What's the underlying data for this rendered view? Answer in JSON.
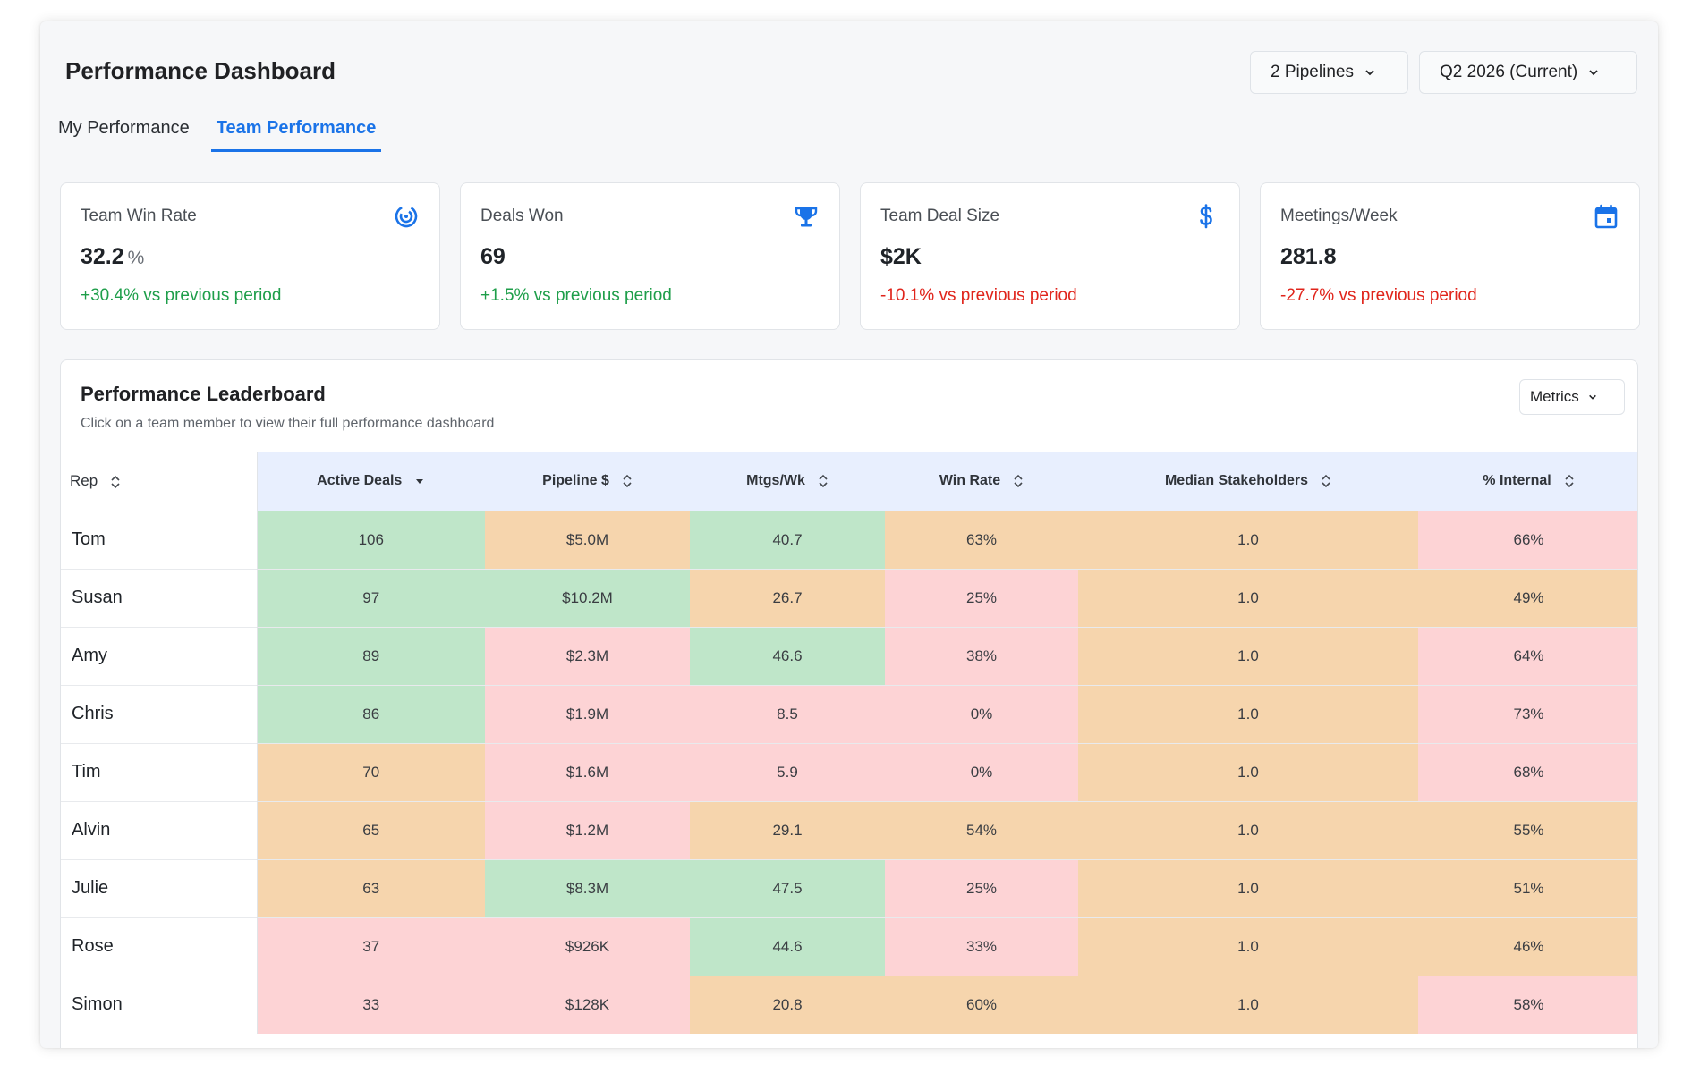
{
  "header": {
    "title": "Performance Dashboard",
    "pipelines_label": "2 Pipelines",
    "period_label": "Q2 2026 (Current)"
  },
  "tabs": [
    {
      "label": "My Performance",
      "active": false
    },
    {
      "label": "Team Performance",
      "active": true
    }
  ],
  "cards": [
    {
      "label": "Team Win Rate",
      "value": "32.2",
      "unit": "%",
      "delta": "+30.4% vs previous period",
      "trend": "up",
      "icon": "target-icon"
    },
    {
      "label": "Deals Won",
      "value": "69",
      "unit": "",
      "delta": "+1.5% vs previous period",
      "trend": "up",
      "icon": "trophy-icon"
    },
    {
      "label": "Team Deal Size",
      "value": "$2K",
      "unit": "",
      "delta": "-10.1% vs previous period",
      "trend": "down",
      "icon": "dollar-icon"
    },
    {
      "label": "Meetings/Week",
      "value": "281.8",
      "unit": "",
      "delta": "-27.7% vs previous period",
      "trend": "down",
      "icon": "calendar-icon"
    }
  ],
  "leaderboard": {
    "title": "Performance Leaderboard",
    "subtitle": "Click on a team member to view their full performance dashboard",
    "metrics_label": "Metrics",
    "columns": [
      "Rep",
      "Active Deals",
      "Pipeline $",
      "Mtgs/Wk",
      "Win Rate",
      "Median Stakeholders",
      "% Internal"
    ],
    "sorted_column": "Active Deals",
    "sort_direction": "descending",
    "rows": [
      {
        "rep": "Tom",
        "cells": [
          [
            "106",
            "good"
          ],
          [
            "$5.0M",
            "mid"
          ],
          [
            "40.7",
            "good"
          ],
          [
            "63%",
            "mid"
          ],
          [
            "1.0",
            "mid"
          ],
          [
            "66%",
            "bad"
          ]
        ]
      },
      {
        "rep": "Susan",
        "cells": [
          [
            "97",
            "good"
          ],
          [
            "$10.2M",
            "good"
          ],
          [
            "26.7",
            "mid"
          ],
          [
            "25%",
            "bad"
          ],
          [
            "1.0",
            "mid"
          ],
          [
            "49%",
            "mid"
          ]
        ]
      },
      {
        "rep": "Amy",
        "cells": [
          [
            "89",
            "good"
          ],
          [
            "$2.3M",
            "bad"
          ],
          [
            "46.6",
            "good"
          ],
          [
            "38%",
            "bad"
          ],
          [
            "1.0",
            "mid"
          ],
          [
            "64%",
            "bad"
          ]
        ]
      },
      {
        "rep": "Chris",
        "cells": [
          [
            "86",
            "good"
          ],
          [
            "$1.9M",
            "bad"
          ],
          [
            "8.5",
            "bad"
          ],
          [
            "0%",
            "bad"
          ],
          [
            "1.0",
            "mid"
          ],
          [
            "73%",
            "bad"
          ]
        ]
      },
      {
        "rep": "Tim",
        "cells": [
          [
            "70",
            "mid"
          ],
          [
            "$1.6M",
            "bad"
          ],
          [
            "5.9",
            "bad"
          ],
          [
            "0%",
            "bad"
          ],
          [
            "1.0",
            "mid"
          ],
          [
            "68%",
            "bad"
          ]
        ]
      },
      {
        "rep": "Alvin",
        "cells": [
          [
            "65",
            "mid"
          ],
          [
            "$1.2M",
            "bad"
          ],
          [
            "29.1",
            "mid"
          ],
          [
            "54%",
            "mid"
          ],
          [
            "1.0",
            "mid"
          ],
          [
            "55%",
            "mid"
          ]
        ]
      },
      {
        "rep": "Julie",
        "cells": [
          [
            "63",
            "mid"
          ],
          [
            "$8.3M",
            "good"
          ],
          [
            "47.5",
            "good"
          ],
          [
            "25%",
            "bad"
          ],
          [
            "1.0",
            "mid"
          ],
          [
            "51%",
            "mid"
          ]
        ]
      },
      {
        "rep": "Rose",
        "cells": [
          [
            "37",
            "bad"
          ],
          [
            "$926K",
            "bad"
          ],
          [
            "44.6",
            "good"
          ],
          [
            "33%",
            "bad"
          ],
          [
            "1.0",
            "mid"
          ],
          [
            "46%",
            "mid"
          ]
        ]
      },
      {
        "rep": "Simon",
        "cells": [
          [
            "33",
            "bad"
          ],
          [
            "$128K",
            "bad"
          ],
          [
            "20.8",
            "mid"
          ],
          [
            "60%",
            "mid"
          ],
          [
            "1.0",
            "mid"
          ],
          [
            "58%",
            "bad"
          ]
        ]
      }
    ]
  },
  "colors": {
    "accent": "#1a73e8",
    "positive": "#1e9e4a",
    "negative": "#e0241b",
    "cell_good": "#bfe6c9",
    "cell_mid": "#f6d5ad",
    "cell_bad": "#fdd3d5",
    "header_bg": "#e8effe"
  }
}
